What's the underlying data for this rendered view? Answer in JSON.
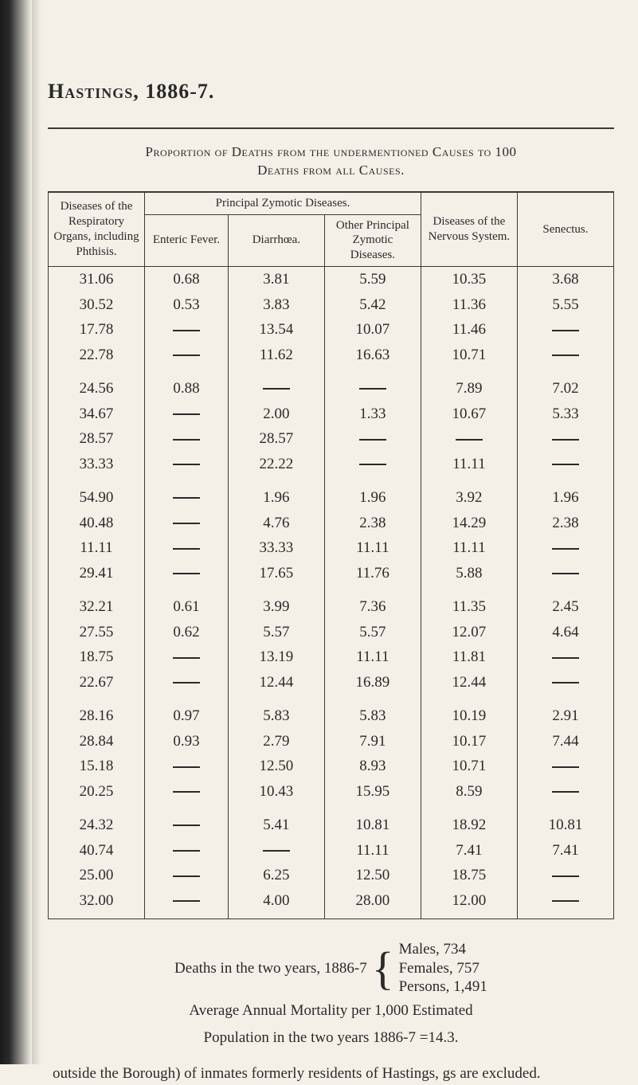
{
  "heading": "Hastings, 1886-7.",
  "caption_line1": "Proportion of Deaths from the undermentioned Causes to 100",
  "caption_line2": "Deaths from all Causes.",
  "table": {
    "headers": {
      "col0": "Diseases of the Respiratory Organs, including Phthisis.",
      "col1_group": "Principal Zymotic Diseases.",
      "col1a": "Enteric Fever.",
      "col1b": "Diarrhœa.",
      "col1c": "Other Principal Zymotic Diseases.",
      "col2": "Diseases of the Nervous System.",
      "col3": "Senectus."
    },
    "groups": [
      [
        [
          "31.06",
          "0.68",
          "3.81",
          "5.59",
          "10.35",
          "3.68"
        ],
        [
          "30.52",
          "0.53",
          "3.83",
          "5.42",
          "11.36",
          "5.55"
        ],
        [
          "17.78",
          "—",
          "13.54",
          "10.07",
          "11.46",
          "—"
        ],
        [
          "22.78",
          "—",
          "11.62",
          "16.63",
          "10.71",
          "—"
        ]
      ],
      [
        [
          "24.56",
          "0.88",
          "—",
          "—",
          "7.89",
          "7.02"
        ],
        [
          "34.67",
          "—",
          "2.00",
          "1.33",
          "10.67",
          "5.33"
        ],
        [
          "28.57",
          "—",
          "28.57",
          "—",
          "—",
          "—"
        ],
        [
          "33.33",
          "—",
          "22.22",
          "—",
          "11.11",
          "—"
        ]
      ],
      [
        [
          "54.90",
          "—",
          "1.96",
          "1.96",
          "3.92",
          "1.96"
        ],
        [
          "40.48",
          "—",
          "4.76",
          "2.38",
          "14.29",
          "2.38"
        ],
        [
          "11.11",
          "—",
          "33.33",
          "11.11",
          "11.11",
          "—"
        ],
        [
          "29.41",
          "—",
          "17.65",
          "11.76",
          "5.88",
          "—"
        ]
      ],
      [
        [
          "32.21",
          "0.61",
          "3.99",
          "7.36",
          "11.35",
          "2.45"
        ],
        [
          "27.55",
          "0.62",
          "5.57",
          "5.57",
          "12.07",
          "4.64"
        ],
        [
          "18.75",
          "—",
          "13.19",
          "11.11",
          "11.81",
          "—"
        ],
        [
          "22.67",
          "—",
          "12.44",
          "16.89",
          "12.44",
          "—"
        ]
      ],
      [
        [
          "28.16",
          "0.97",
          "5.83",
          "5.83",
          "10.19",
          "2.91"
        ],
        [
          "28.84",
          "0.93",
          "2.79",
          "7.91",
          "10.17",
          "7.44"
        ],
        [
          "15.18",
          "—",
          "12.50",
          "8.93",
          "10.71",
          "—"
        ],
        [
          "20.25",
          "—",
          "10.43",
          "15.95",
          "8.59",
          "—"
        ]
      ],
      [
        [
          "24.32",
          "—",
          "5.41",
          "10.81",
          "18.92",
          "10.81"
        ],
        [
          "40.74",
          "—",
          "—",
          "11.11",
          "7.41",
          "7.41"
        ],
        [
          "25.00",
          "—",
          "6.25",
          "12.50",
          "18.75",
          "—"
        ],
        [
          "32.00",
          "—",
          "4.00",
          "28.00",
          "12.00",
          "—"
        ]
      ]
    ]
  },
  "footer": {
    "deaths_prefix": "Deaths in the two years, 1886-7",
    "brace_lines": [
      "Males,     734",
      "Females, 757",
      "Persons, 1,491"
    ],
    "avg_line1": "Average Annual Mortality per 1,000 Estimated",
    "avg_line2": "Population in the two years 1886-7 =14.3.",
    "note": "outside the Borough) of inmates formerly residents of Hastings, gs are excluded."
  }
}
